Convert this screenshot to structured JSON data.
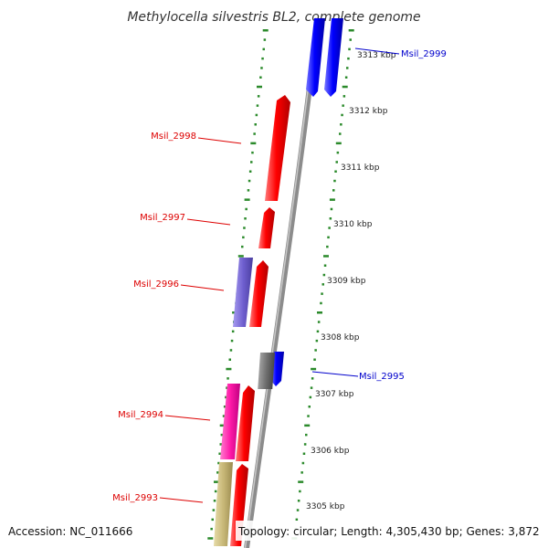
{
  "title": "Methylocella silvestris BL2, complete genome",
  "accession": "Accession: NC_011666",
  "summary": "Topology: circular; Length: 4,305,430 bp; Genes: 3,872",
  "colors": {
    "label_reverse": "#dd0000",
    "label_forward": "#0000cc",
    "tick": "#2b8a2b",
    "backbone": "#8c8c8c"
  },
  "ticks": [
    {
      "label": "3313 kbp"
    },
    {
      "label": "3312 kbp"
    },
    {
      "label": "3311 kbp"
    },
    {
      "label": "3310 kbp"
    },
    {
      "label": "3309 kbp"
    },
    {
      "label": "3308 kbp"
    },
    {
      "label": "3307 kbp"
    },
    {
      "label": "3306 kbp"
    },
    {
      "label": "3305 kbp"
    }
  ],
  "gene_labels": [
    {
      "name": "Msil_2999",
      "strand": "forward"
    },
    {
      "name": "Msil_2998",
      "strand": "reverse"
    },
    {
      "name": "Msil_2997",
      "strand": "reverse"
    },
    {
      "name": "Msil_2996",
      "strand": "reverse"
    },
    {
      "name": "Msil_2995",
      "strand": "forward"
    },
    {
      "name": "Msil_2994",
      "strand": "reverse"
    },
    {
      "name": "Msil_2993",
      "strand": "reverse"
    }
  ]
}
